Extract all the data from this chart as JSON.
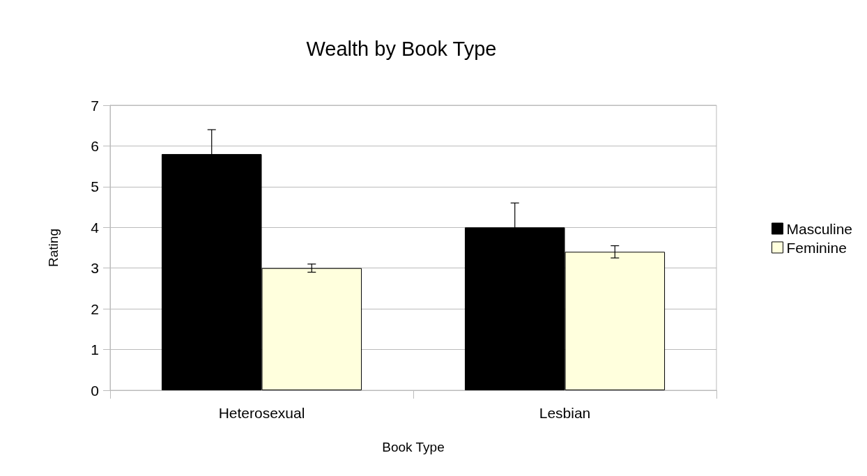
{
  "chart_data": {
    "type": "bar",
    "title": "Wealth by Book Type",
    "xlabel": "Book Type",
    "ylabel": "Rating",
    "categories": [
      "Heterosexual",
      "Lesbian"
    ],
    "series": [
      {
        "name": "Masculine",
        "color": "#000000",
        "values": [
          5.8,
          4.0
        ],
        "errors": [
          0.6,
          0.6
        ]
      },
      {
        "name": "Feminine",
        "color": "#ffffdd",
        "values": [
          3.0,
          3.4
        ],
        "errors": [
          0.1,
          0.15
        ]
      }
    ],
    "ylim": [
      0,
      7
    ],
    "yticks": [
      0,
      1,
      2,
      3,
      4,
      5,
      6,
      7
    ],
    "grid": "y",
    "legend": "right"
  }
}
